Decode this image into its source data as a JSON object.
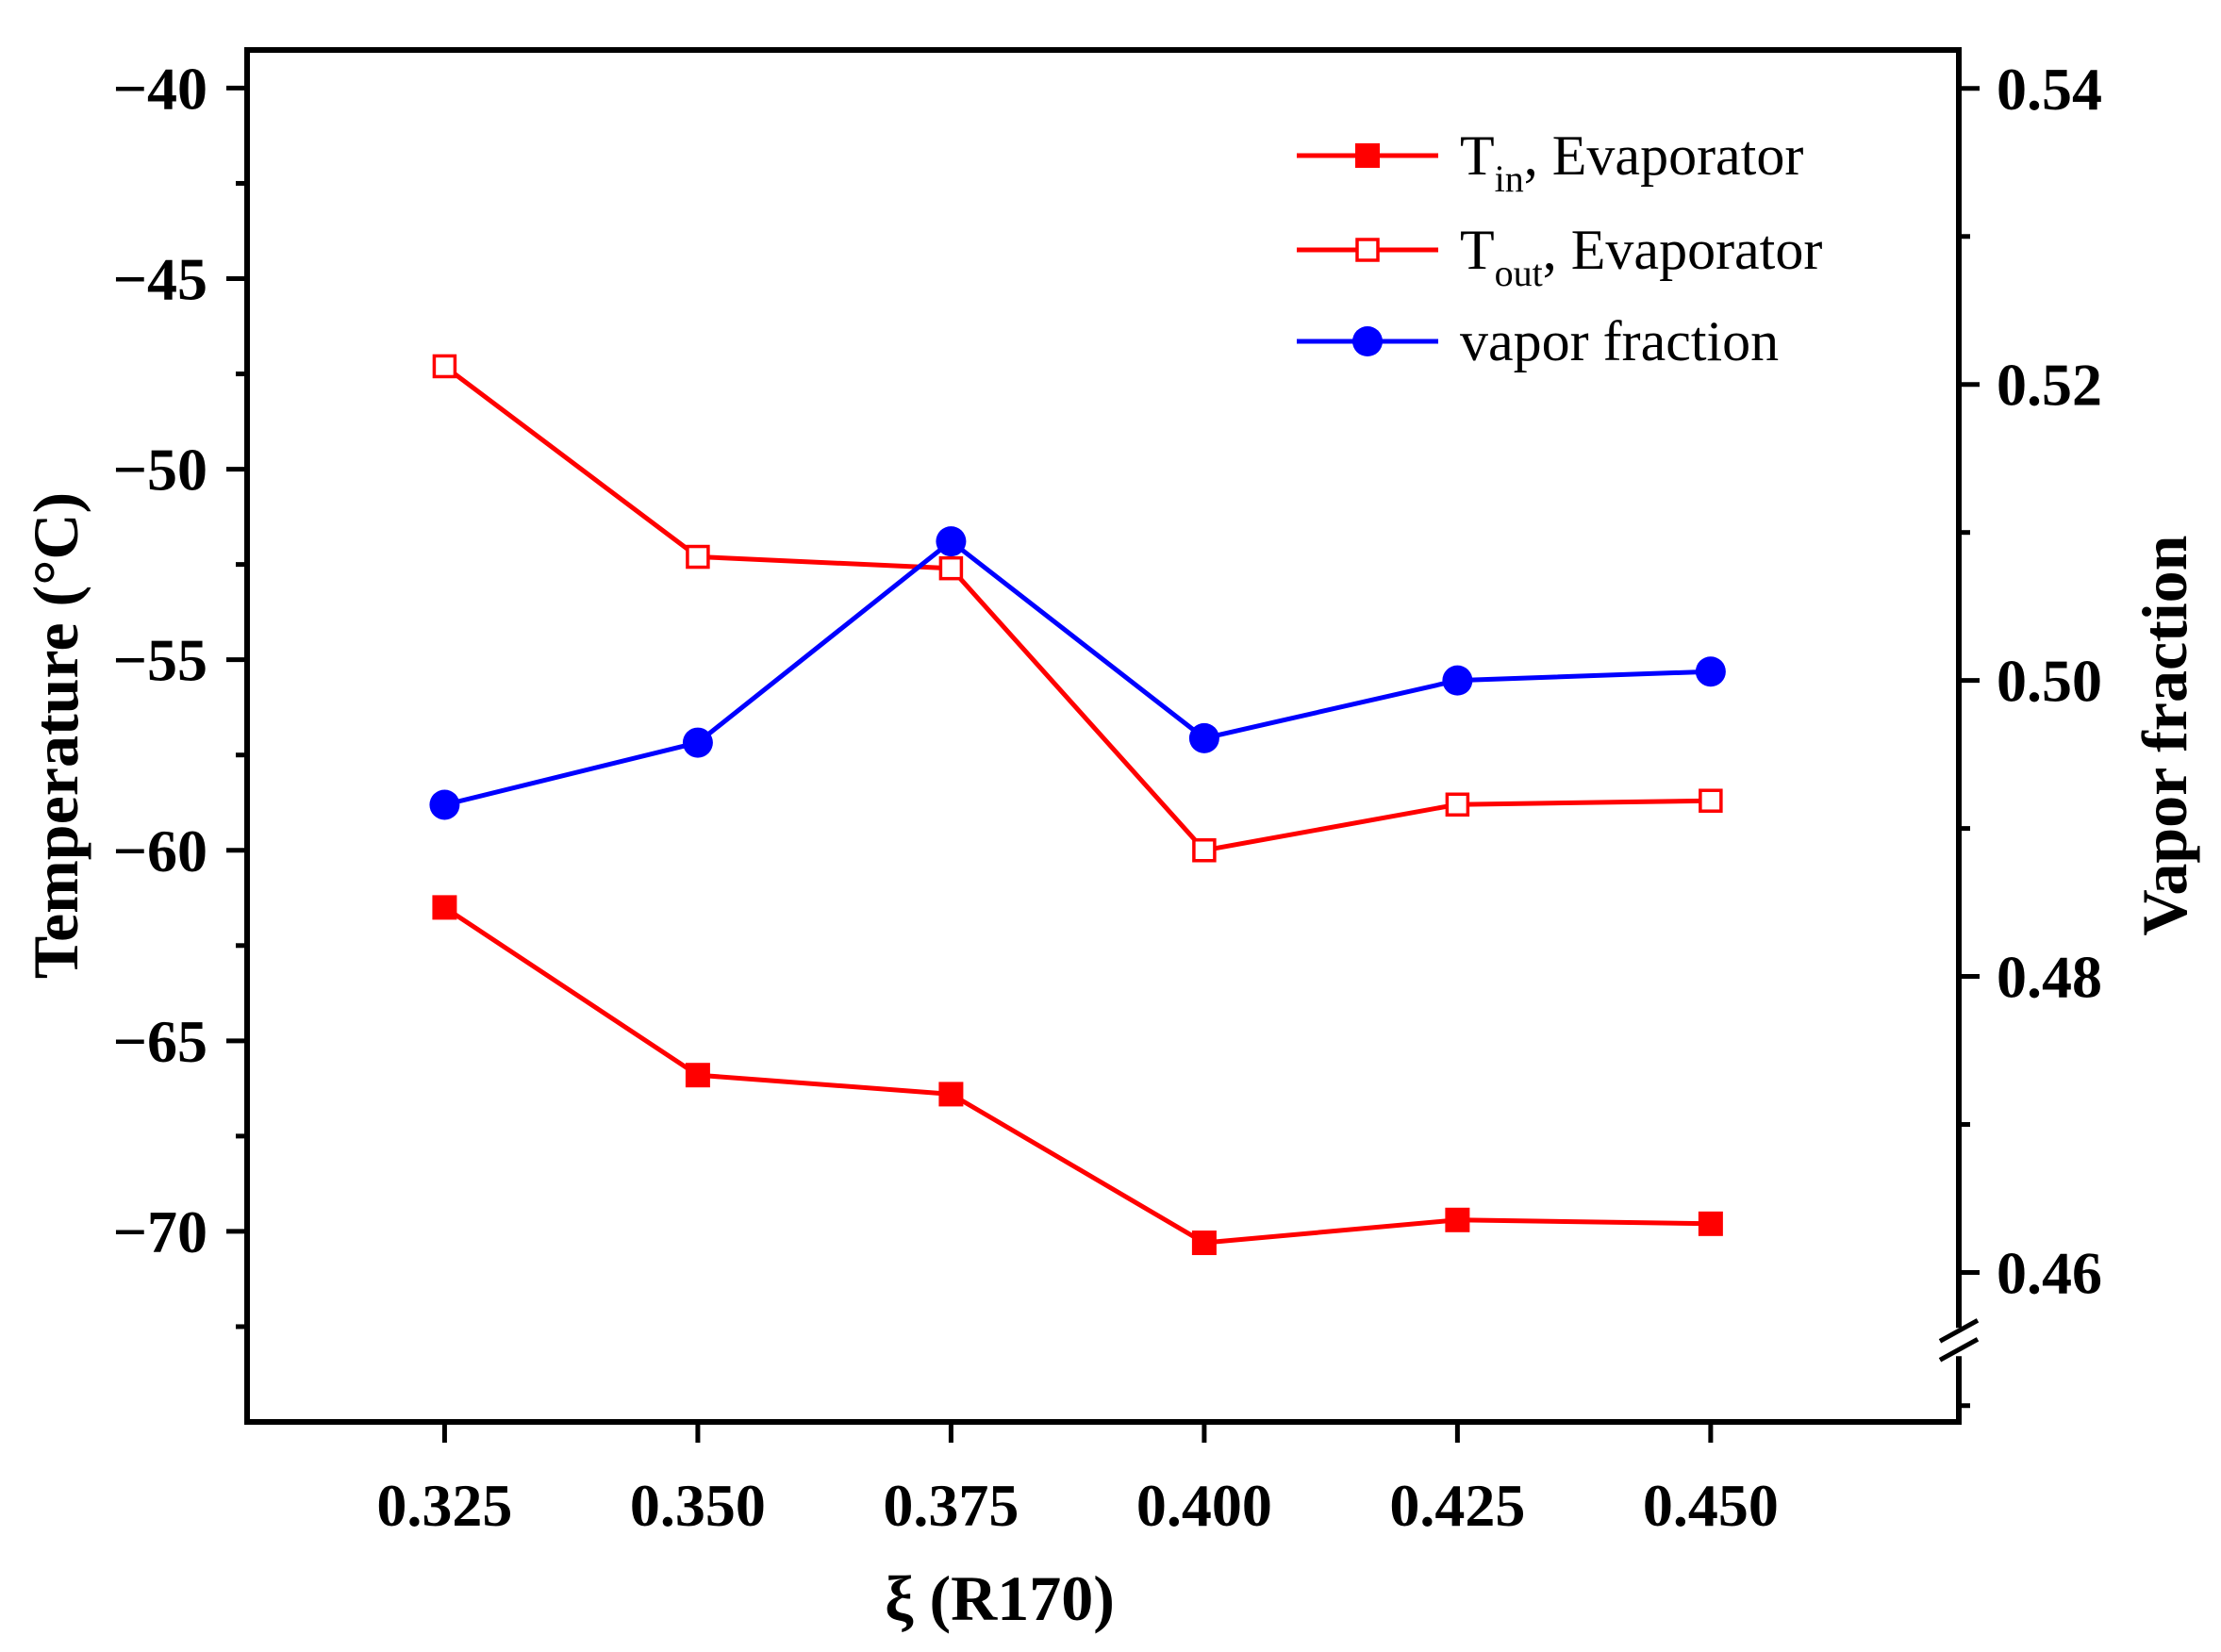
{
  "chart_data": {
    "type": "line",
    "xlabel": "ξ (R170)",
    "ylabel_left": "Temperature (°C)",
    "ylabel_right": "Vapor fraction",
    "x": [
      0.325,
      0.35,
      0.375,
      0.4,
      0.425,
      0.45
    ],
    "x_tick_labels": [
      "0.325",
      "0.350",
      "0.375",
      "0.400",
      "0.425",
      "0.450"
    ],
    "xlim": [
      0.3055,
      0.4745
    ],
    "ylim_left": [
      -75,
      -39
    ],
    "ylim_right": [
      0.4499,
      0.5426
    ],
    "left_ticks": [
      -40,
      -45,
      -50,
      -55,
      -60,
      -65,
      -70
    ],
    "left_tick_labels": [
      "−40",
      "−45",
      "−50",
      "−55",
      "−60",
      "−65",
      "−70"
    ],
    "left_minor_ticks": [
      -42.5,
      -47.5,
      -52.5,
      -57.5,
      -62.5,
      -67.5,
      -72.5
    ],
    "right_ticks": [
      0.54,
      0.52,
      0.5,
      0.48,
      0.46
    ],
    "right_tick_labels": [
      "0.54",
      "0.52",
      "0.50",
      "0.48",
      "0.46"
    ],
    "right_minor_ticks": [
      0.53,
      0.51,
      0.49,
      0.47,
      0.451
    ],
    "right_axis_break": true,
    "legend_position": "top-right",
    "series": [
      {
        "main": "T",
        "sub": "in",
        "suffix": ", Evaporator",
        "axis": "left",
        "color": "#ff0000",
        "marker": "square-filled",
        "values": [
          -61.5,
          -65.9,
          -66.4,
          -70.3,
          -69.7,
          -69.8
        ]
      },
      {
        "main": "T",
        "sub": "out",
        "suffix": ", Evaporator",
        "axis": "left",
        "color": "#ff0000",
        "marker": "square-open",
        "values": [
          -47.3,
          -52.3,
          -52.6,
          -60.0,
          -58.8,
          -58.7
        ]
      },
      {
        "main": "vapor fraction",
        "sub": "",
        "suffix": "",
        "axis": "right",
        "color": "#0000ff",
        "marker": "circle-filled",
        "values": [
          0.4916,
          0.4958,
          0.5094,
          0.4961,
          0.5,
          0.5006
        ]
      }
    ]
  }
}
